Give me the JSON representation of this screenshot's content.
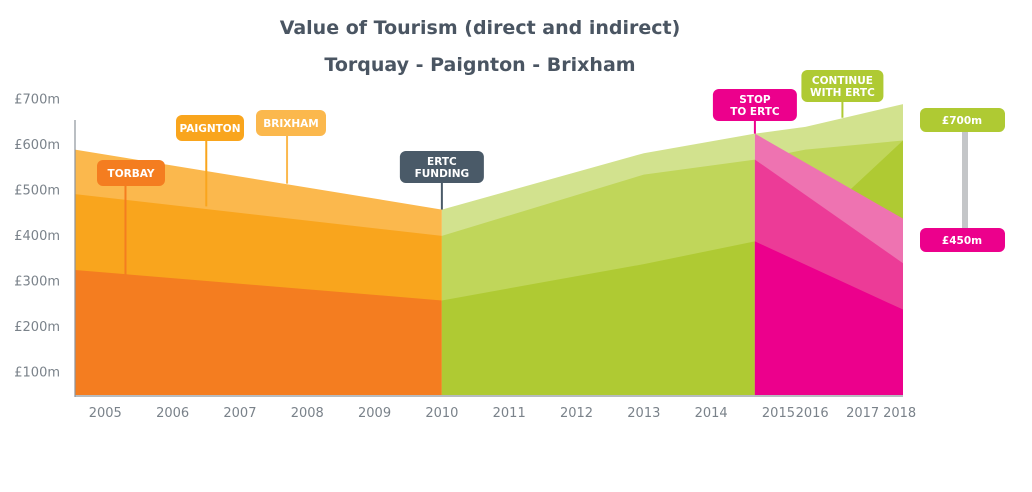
{
  "chart_data": {
    "type": "area",
    "title": "Value of Tourism (direct and indirect)",
    "subtitle": "Torquay - Paignton - Brixham",
    "x_ticks": [
      "2005",
      "2006",
      "2007",
      "2008",
      "2009",
      "2010",
      "2011",
      "2012",
      "2013",
      "2014",
      "2015",
      "2016",
      "2017",
      "2018"
    ],
    "y_ticks": [
      "£100m",
      "£200m",
      "£300m",
      "£400m",
      "£500m",
      "£600m",
      "£700m"
    ],
    "ylim": [
      50,
      720
    ],
    "x_positions": {
      "2005": 2005,
      "2006": 2006,
      "2007": 2007,
      "2008": 2008,
      "2009": 2009,
      "2010": 2010,
      "2011": 2011,
      "2012": 2012,
      "2013": 2013,
      "2014": 2014,
      "2015": 2015,
      "2016": 2015.5,
      "2017": 2016.25,
      "2018": 2016.8
    },
    "regions": [
      {
        "stack": [
          {
            "color": "#f47d20",
            "points": [
              [
                2004.55,
                325
              ],
              [
                2010,
                258
              ]
            ]
          },
          {
            "color": "#f9a51d",
            "points": [
              [
                2004.55,
                492
              ],
              [
                2010,
                400
              ]
            ]
          },
          {
            "color": "#fbb84d",
            "points": [
              [
                2004.55,
                590
              ],
              [
                2010,
                458
              ]
            ]
          }
        ]
      },
      {
        "stack": [
          {
            "color": "#afca33",
            "points": [
              [
                2010,
                258
              ],
              [
                2013,
                338
              ],
              [
                2014.65,
                388
              ]
            ]
          },
          {
            "color": "#c0d65a",
            "points": [
              [
                2010,
                400
              ],
              [
                2013,
                535
              ],
              [
                2014.65,
                568
              ]
            ]
          },
          {
            "color": "#d2e28e",
            "points": [
              [
                2010,
                458
              ],
              [
                2013,
                582
              ],
              [
                2014.65,
                625
              ]
            ]
          }
        ]
      },
      {
        "stack": [
          {
            "color": "#afca33",
            "points": [
              [
                2014.65,
                388
              ],
              [
                2015.4,
                410
              ],
              [
                2016.85,
                610
              ]
            ]
          },
          {
            "color": "#c0d65a",
            "points": [
              [
                2014.65,
                568
              ],
              [
                2015.4,
                590
              ],
              [
                2016.85,
                610
              ]
            ]
          },
          {
            "color": "#d2e28e",
            "points": [
              [
                2014.65,
                625
              ],
              [
                2015.4,
                640
              ],
              [
                2016.85,
                690
              ]
            ]
          }
        ]
      },
      {
        "stack": [
          {
            "color": "#ec008c",
            "points": [
              [
                2014.65,
                388
              ],
              [
                2016.85,
                238
              ]
            ]
          },
          {
            "color": "#ec3b97",
            "points": [
              [
                2014.65,
                568
              ],
              [
                2016.85,
                340
              ]
            ]
          },
          {
            "color": "#ee73b1",
            "points": [
              [
                2014.65,
                625
              ],
              [
                2016.85,
                438
              ]
            ]
          }
        ]
      }
    ],
    "annotations": [
      {
        "text": [
          "TORBAY"
        ],
        "color": "#f47d20",
        "year": 2005.3,
        "value": 315
      },
      {
        "text": [
          "PAIGNTON"
        ],
        "color": "#f9a51d",
        "year": 2006.5,
        "value": 465
      },
      {
        "text": [
          "BRIXHAM"
        ],
        "color": "#fbb84d",
        "year": 2007.7,
        "value": 515
      },
      {
        "text": [
          "ERTC",
          "FUNDING"
        ],
        "color": "#4a5a68",
        "year": 2010,
        "value": 458
      },
      {
        "text": [
          "STOP",
          "TO ERTC"
        ],
        "color": "#ec008c",
        "year": 2014.65,
        "value": 625
      },
      {
        "text": [
          "CONTINUE",
          "WITH ERTC"
        ],
        "color": "#afca33",
        "year": 2015.95,
        "value": 660
      }
    ],
    "end_labels": [
      {
        "text": "£700m",
        "color": "#afca33"
      },
      {
        "text": "£450m",
        "color": "#ec008c"
      }
    ]
  }
}
